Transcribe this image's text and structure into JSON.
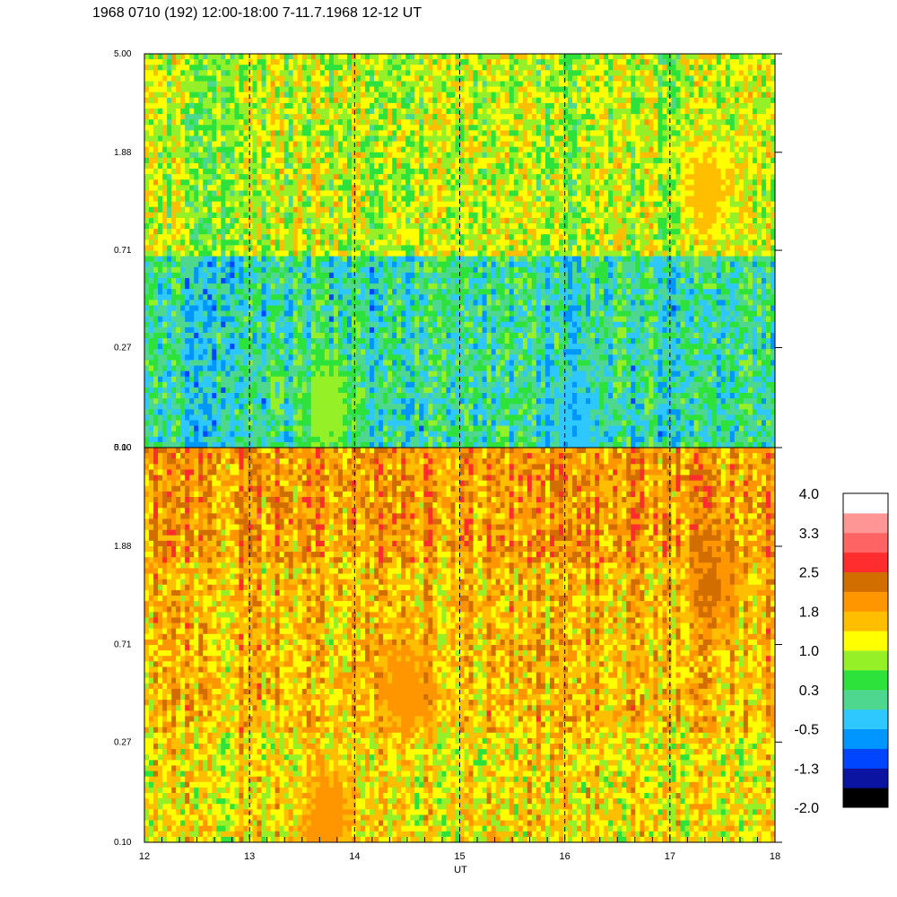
{
  "title": "1968 0710 (192) 12:00-18:00 7-11.7.1968  12-12 UT",
  "chart_data": [
    {
      "type": "heatmap",
      "panel": "upper",
      "x_range": [
        12,
        18
      ],
      "x_ticks": [
        "12",
        "13",
        "14",
        "15",
        "16",
        "17",
        "18"
      ],
      "y_ticks": [
        "0.10",
        "0.27",
        "0.71",
        "1.88",
        "5.00"
      ],
      "y_range": [
        0.1,
        5.0
      ],
      "y_scale": "log",
      "dashed_lines_at": [
        13,
        14,
        15,
        16,
        17
      ],
      "bands": [
        {
          "y_from": 4.3,
          "y_to": 4.7,
          "level": 0.9
        },
        {
          "y_from": 1.7,
          "y_to": 2.0,
          "level": 0.9
        },
        {
          "y_from": 0.1,
          "y_to": 0.6,
          "level": 0.0
        }
      ],
      "features": [
        {
          "x": 17.35,
          "y": 1.3,
          "level": 1.7
        },
        {
          "x": 13.75,
          "y": 0.15,
          "level": 1.0
        },
        {
          "x": 16.1,
          "y": 0.12,
          "level": -0.5
        }
      ]
    },
    {
      "type": "heatmap",
      "panel": "lower",
      "x_range": [
        12,
        18
      ],
      "x_ticks": [
        "12",
        "13",
        "14",
        "15",
        "16",
        "17",
        "18"
      ],
      "xlabel": "UT",
      "y_ticks": [
        "0.10",
        "0.27",
        "0.71",
        "1.88",
        "5.00"
      ],
      "y_range": [
        0.1,
        5.0
      ],
      "y_scale": "log",
      "dashed_lines_at": [
        13,
        14,
        15,
        16,
        17
      ],
      "bands": [
        {
          "y_from": 1.75,
          "y_to": 2.0,
          "level": 1.9
        },
        {
          "y_from": 0.3,
          "y_to": 1.6,
          "level": 1.6
        },
        {
          "y_from": 0.1,
          "y_to": 0.3,
          "level": 1.3
        }
      ],
      "features": [
        {
          "x": 14.5,
          "y": 0.45,
          "level": 2.0
        },
        {
          "x": 17.4,
          "y": 1.3,
          "level": 2.2
        },
        {
          "x": 13.75,
          "y": 0.13,
          "level": 2.1
        }
      ]
    }
  ],
  "colorbar": {
    "labels": [
      "4.0",
      "3.3",
      "2.5",
      "1.8",
      "1.0",
      "0.3",
      "-0.5",
      "-1.3",
      "-2.0"
    ],
    "min": -2.0,
    "max": 4.0,
    "colors": [
      "#000000",
      "#0a14a0",
      "#0046ff",
      "#0096ff",
      "#2ec8ff",
      "#4ed88f",
      "#2ee23c",
      "#96f028",
      "#ffff00",
      "#ffbe00",
      "#ff9600",
      "#d26e00",
      "#ff2d2d",
      "#ff6464",
      "#ff9696",
      "#ffffff"
    ]
  }
}
